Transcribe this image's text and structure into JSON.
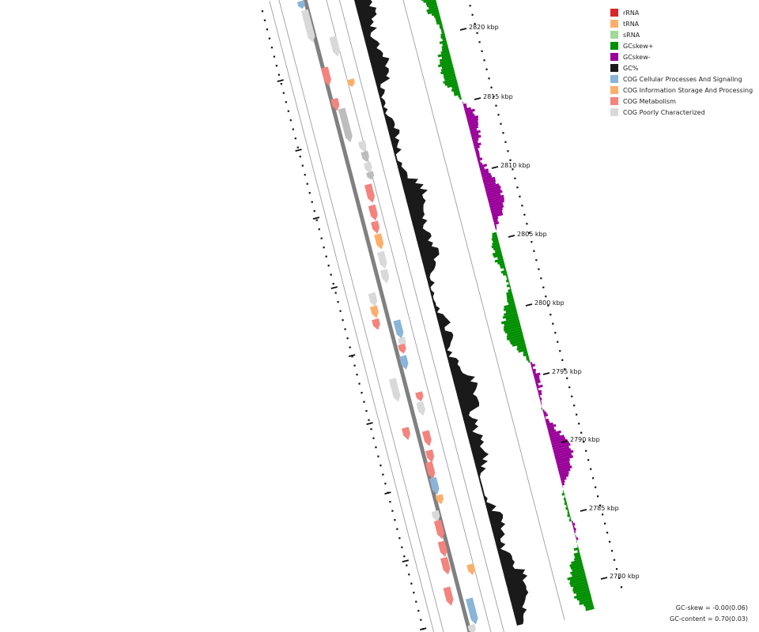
{
  "legend": [
    {
      "label": "rRNA",
      "color": "#d62728"
    },
    {
      "label": "tRNA",
      "color": "#fdae6b"
    },
    {
      "label": "sRNA",
      "color": "#a1d99b"
    },
    {
      "label": "GCskew+",
      "color": "#008f00"
    },
    {
      "label": "GCskew-",
      "color": "#990099"
    },
    {
      "label": "GC%",
      "color": "#1a1a1a"
    },
    {
      "label": "COG Cellular Processes And Signaling",
      "color": "#8ab4d8"
    },
    {
      "label": "COG Information Storage And Processing",
      "color": "#fdae6b"
    },
    {
      "label": "COG Metabolism",
      "color": "#f4837d"
    },
    {
      "label": "COG Poorly Characterized",
      "color": "#d9d9d9"
    }
  ],
  "ticks": [
    {
      "pos_kbp": 2820,
      "label": "2820 kbp"
    },
    {
      "pos_kbp": 2815,
      "label": "2815 kbp"
    },
    {
      "pos_kbp": 2810,
      "label": "2810 kbp"
    },
    {
      "pos_kbp": 2805,
      "label": "2805 kbp"
    },
    {
      "pos_kbp": 2800,
      "label": "2800 kbp"
    },
    {
      "pos_kbp": 2795,
      "label": "2795 kbp"
    },
    {
      "pos_kbp": 2790,
      "label": "2790 kbp"
    },
    {
      "pos_kbp": 2785,
      "label": "2785 kbp"
    },
    {
      "pos_kbp": 2780,
      "label": "2780 kbp"
    }
  ],
  "stats": {
    "gc_skew": "GC-skew = -0.00(0.06)",
    "gc_content": "GC-content = 0.70(0.03)"
  },
  "colors": {
    "backbone": "#808080",
    "track_line": "#9e9e9e",
    "ruler": "#111111"
  }
}
